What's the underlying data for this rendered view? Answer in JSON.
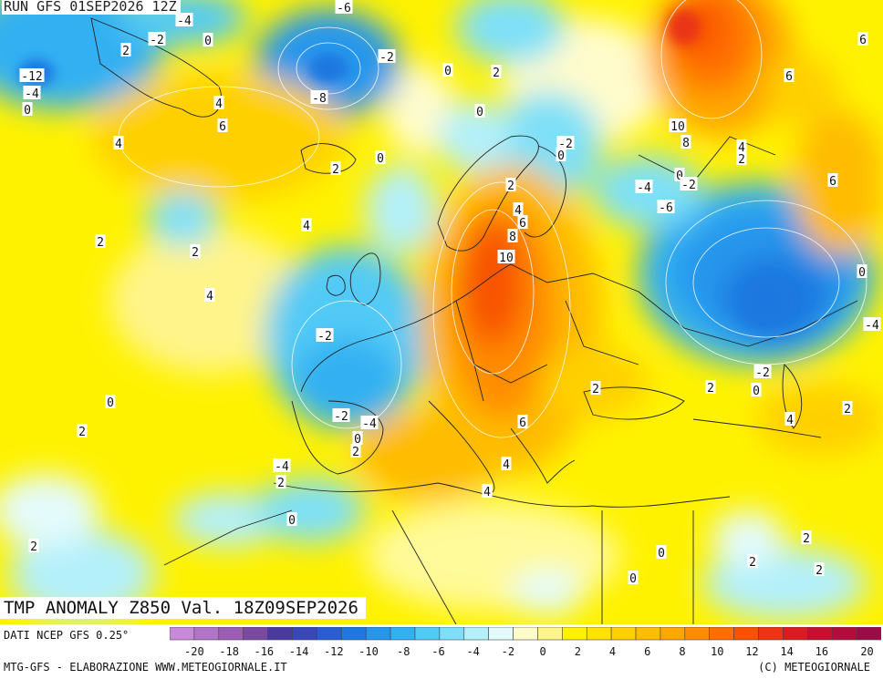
{
  "run_label": "RUN GFS 01SEP2026 12Z",
  "title": "TMP ANOMALY Z850 Val. 18Z09SEP2026",
  "source": "DATI NCEP GFS 0.25°",
  "credit_left": "MTG-GFS - ELABORAZIONE WWW.METEOGIORNALE.IT",
  "credit_right": "(C) METEOGIORNALE",
  "legend": {
    "ticks": [
      "-20",
      "-18",
      "-16",
      "-14",
      "-12",
      "-10",
      "-8",
      "-6",
      "-4",
      "-2",
      "0",
      "2",
      "4",
      "6",
      "8",
      "10",
      "12",
      "14",
      "16",
      "20"
    ],
    "colors": [
      "#c88ad8",
      "#b274c6",
      "#9c5eb4",
      "#7a4aa0",
      "#4b3a9e",
      "#3848b8",
      "#2a5ed0",
      "#1e78e0",
      "#2596ec",
      "#31b0f2",
      "#52caf6",
      "#7ee0f8",
      "#b4f0fa",
      "#e4fbfc",
      "#fffccc",
      "#fff48a",
      "#fff200",
      "#ffe200",
      "#ffd000",
      "#ffbc00",
      "#ffa600",
      "#ff8c00",
      "#ff6f00",
      "#f85200",
      "#ea3414",
      "#d81c22",
      "#c61030",
      "#b00c3c",
      "#9a0c48"
    ]
  },
  "contour_labels": [
    {
      "t": "-6"
    },
    {
      "t": "-4"
    },
    {
      "t": "-2"
    },
    {
      "t": "0"
    },
    {
      "t": "2"
    },
    {
      "t": "-12"
    },
    {
      "t": "-4"
    },
    {
      "t": "0"
    },
    {
      "t": "-2"
    },
    {
      "t": "-8"
    },
    {
      "t": "0"
    },
    {
      "t": "2"
    },
    {
      "t": "0"
    },
    {
      "t": "4"
    },
    {
      "t": "6"
    },
    {
      "t": "4"
    },
    {
      "t": "2"
    },
    {
      "t": "0"
    },
    {
      "t": "-2"
    },
    {
      "t": "0"
    },
    {
      "t": "6"
    },
    {
      "t": "6"
    },
    {
      "t": "10"
    },
    {
      "t": "8"
    },
    {
      "t": "4"
    },
    {
      "t": "2"
    },
    {
      "t": "0"
    },
    {
      "t": "-2"
    },
    {
      "t": "-4"
    },
    {
      "t": "-6"
    },
    {
      "t": "6"
    },
    {
      "t": "2"
    },
    {
      "t": "4"
    },
    {
      "t": "6"
    },
    {
      "t": "8"
    },
    {
      "t": "10"
    },
    {
      "t": "2"
    },
    {
      "t": "2"
    },
    {
      "t": "4"
    },
    {
      "t": "4"
    },
    {
      "t": "0"
    },
    {
      "t": "-2"
    },
    {
      "t": "-4"
    },
    {
      "t": "-2"
    },
    {
      "t": "0"
    },
    {
      "t": "2"
    },
    {
      "t": "2"
    },
    {
      "t": "2"
    },
    {
      "t": "0"
    },
    {
      "t": "-2"
    },
    {
      "t": "6"
    },
    {
      "t": "4"
    },
    {
      "t": "2"
    },
    {
      "t": "4"
    },
    {
      "t": "2"
    },
    {
      "t": "0"
    },
    {
      "t": "-4"
    },
    {
      "t": "-4"
    },
    {
      "t": "4"
    },
    {
      "t": "2"
    },
    {
      "t": "0"
    },
    {
      "t": "2"
    },
    {
      "t": "2"
    },
    {
      "t": "0"
    },
    {
      "t": "2"
    },
    {
      "t": "2"
    },
    {
      "t": "0"
    }
  ]
}
